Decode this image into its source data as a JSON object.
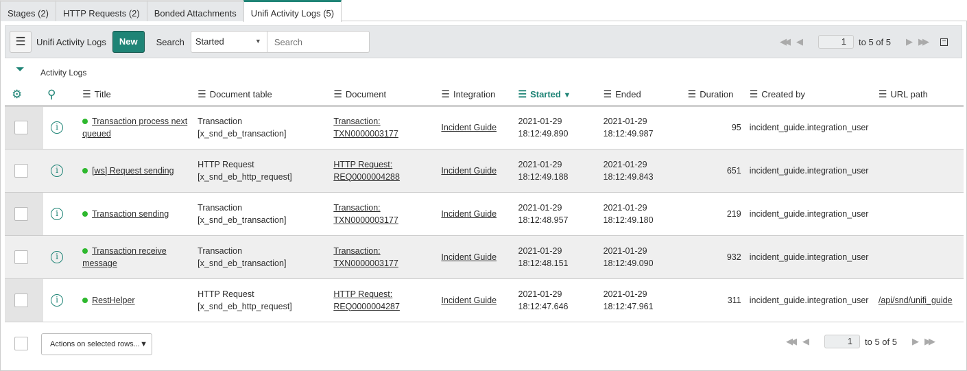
{
  "tabs": [
    {
      "label": "Stages (2)"
    },
    {
      "label": "HTTP Requests (2)"
    },
    {
      "label": "Bonded Attachments"
    },
    {
      "label": "Unifi Activity Logs (5)",
      "active": true
    }
  ],
  "toolbar": {
    "title": "Unifi Activity Logs",
    "new_label": "New",
    "search_label": "Search",
    "search_field": "Started",
    "search_placeholder": "Search"
  },
  "pager": {
    "page": "1",
    "range": "to 5 of 5"
  },
  "breadcrumb": "Activity Logs",
  "columns": [
    "Title",
    "Document table",
    "Document",
    "Integration",
    "Started",
    "Ended",
    "Duration",
    "Created by",
    "URL path"
  ],
  "sort": {
    "column": "Started",
    "direction": "descending"
  },
  "rows": [
    {
      "title": "Transaction process next queued",
      "table1": "Transaction",
      "table2": "[x_snd_eb_transaction]",
      "doc1": "Transaction:",
      "doc2": "TXN0000003177",
      "integration": "Incident Guide",
      "s1": "2021-01-29",
      "s2": "18:12:49.890",
      "e1": "2021-01-29",
      "e2": "18:12:49.987",
      "duration": "95",
      "created_by": "incident_guide.integration_user",
      "url": ""
    },
    {
      "title": "[ws] Request sending",
      "table1": "HTTP Request",
      "table2": "[x_snd_eb_http_request]",
      "doc1": "HTTP Request:",
      "doc2": "REQ0000004288",
      "integration": "Incident Guide",
      "s1": "2021-01-29",
      "s2": "18:12:49.188",
      "e1": "2021-01-29",
      "e2": "18:12:49.843",
      "duration": "651",
      "created_by": "incident_guide.integration_user",
      "url": ""
    },
    {
      "title": "Transaction sending",
      "table1": "Transaction",
      "table2": "[x_snd_eb_transaction]",
      "doc1": "Transaction:",
      "doc2": "TXN0000003177",
      "integration": "Incident Guide",
      "s1": "2021-01-29",
      "s2": "18:12:48.957",
      "e1": "2021-01-29",
      "e2": "18:12:49.180",
      "duration": "219",
      "created_by": "incident_guide.integration_user",
      "url": ""
    },
    {
      "title": "Transaction receive message",
      "table1": "Transaction",
      "table2": "[x_snd_eb_transaction]",
      "doc1": "Transaction:",
      "doc2": "TXN0000003177",
      "integration": "Incident Guide",
      "s1": "2021-01-29",
      "s2": "18:12:48.151",
      "e1": "2021-01-29",
      "e2": "18:12:49.090",
      "duration": "932",
      "created_by": "incident_guide.integration_user",
      "url": ""
    },
    {
      "title": "RestHelper",
      "table1": "HTTP Request",
      "table2": "[x_snd_eb_http_request]",
      "doc1": "HTTP Request:",
      "doc2": "REQ0000004287",
      "integration": "Incident Guide",
      "s1": "2021-01-29",
      "s2": "18:12:47.646",
      "e1": "2021-01-29",
      "e2": "18:12:47.961",
      "duration": "311",
      "created_by": "incident_guide.integration_user",
      "url": "/api/snd/unifi_guide"
    }
  ],
  "footer": {
    "actions_label": "Actions on selected rows...",
    "page": "1",
    "range": "to 5 of 5"
  },
  "colors": {
    "accent": "#1f8476",
    "status_dot": "#2eb82e"
  }
}
